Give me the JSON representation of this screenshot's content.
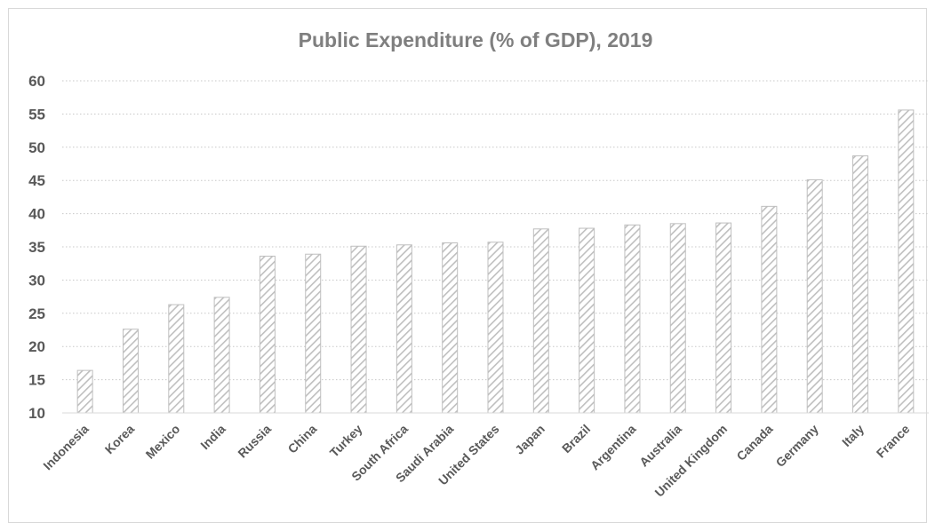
{
  "chart_data": {
    "type": "bar",
    "title": "Public Expenditure (% of GDP), 2019",
    "xlabel": "",
    "ylabel": "",
    "ylim": [
      10,
      60
    ],
    "yticks": [
      10,
      15,
      20,
      25,
      30,
      35,
      40,
      45,
      50,
      55,
      60
    ],
    "grid": "horizontal dotted",
    "legend": "none",
    "bar_fill": "diagonal hatch",
    "bar_color": "#bfbfbf",
    "categories": [
      "Indonesia",
      "Korea",
      "Mexico",
      "India",
      "Russia",
      "China",
      "Turkey",
      "South Africa",
      "Saudi Arabia",
      "United States",
      "Japan",
      "Brazil",
      "Argentina",
      "Australia",
      "United Kingdom",
      "Canada",
      "Germany",
      "Italy",
      "France"
    ],
    "values": [
      16.4,
      22.6,
      26.3,
      27.4,
      33.6,
      33.9,
      35.1,
      35.3,
      35.6,
      35.7,
      37.7,
      37.8,
      38.3,
      38.5,
      38.6,
      41.1,
      45.1,
      48.7,
      55.6
    ]
  }
}
